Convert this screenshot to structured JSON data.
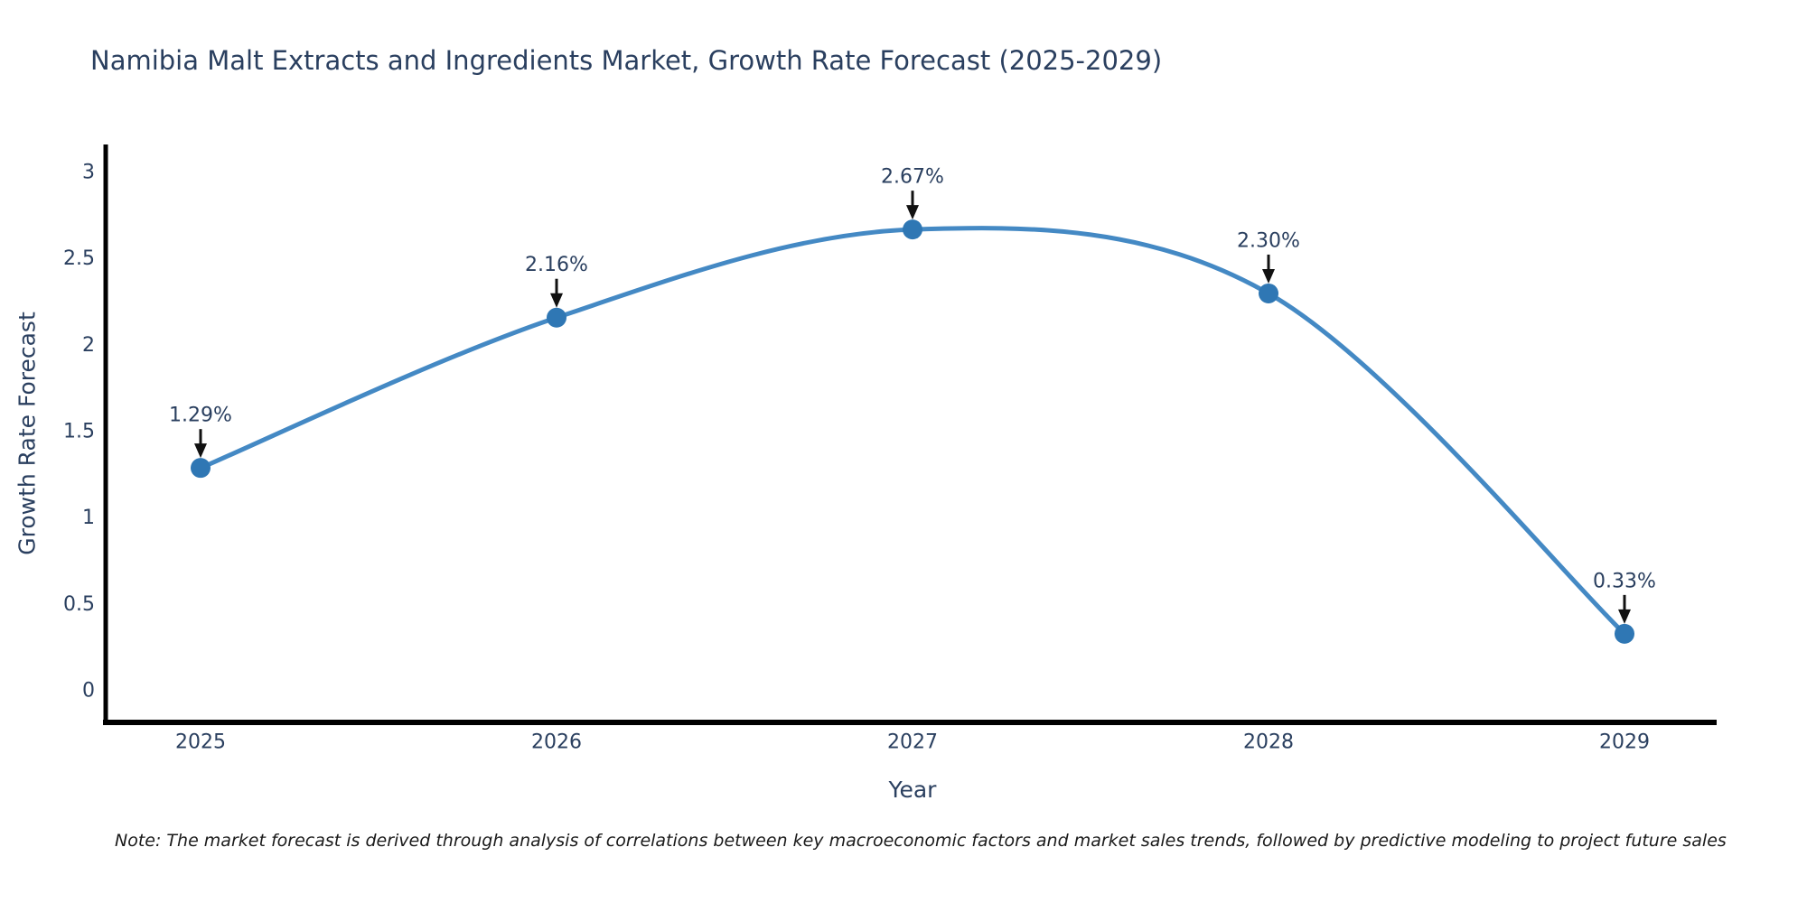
{
  "chart_data": {
    "type": "line",
    "line_shape": "spline",
    "title": "Namibia Malt Extracts and Ingredients Market, Growth Rate Forecast (2025-2029)",
    "xlabel": "Year",
    "ylabel": "Growth Rate Forecast",
    "categories": [
      "2025",
      "2026",
      "2027",
      "2028",
      "2029"
    ],
    "values": [
      1.29,
      2.16,
      2.67,
      2.3,
      0.33
    ],
    "point_labels": [
      "1.29%",
      "2.16%",
      "2.67%",
      "2.30%",
      "0.33%"
    ],
    "ytick_values": [
      0,
      0.5,
      1,
      1.5,
      2,
      2.5,
      3
    ],
    "ytick_labels": [
      "0",
      "0.5",
      "1",
      "1.5",
      "2",
      "2.5",
      "3"
    ],
    "ylim": [
      -0.19,
      3.16
    ],
    "grid": false,
    "legend": "none",
    "annotation_style": "down-arrow-to-point",
    "note": "Note: The market forecast is derived through analysis of correlations between key macroeconomic factors and market sales trends, followed by predictive modeling to project future sales",
    "colors": {
      "line": "#4489c4",
      "marker": "#2f77b4",
      "axis": "#000000",
      "text": "#2a3f5f",
      "arrow": "#111111",
      "note_text": "#1a1a1a"
    }
  }
}
